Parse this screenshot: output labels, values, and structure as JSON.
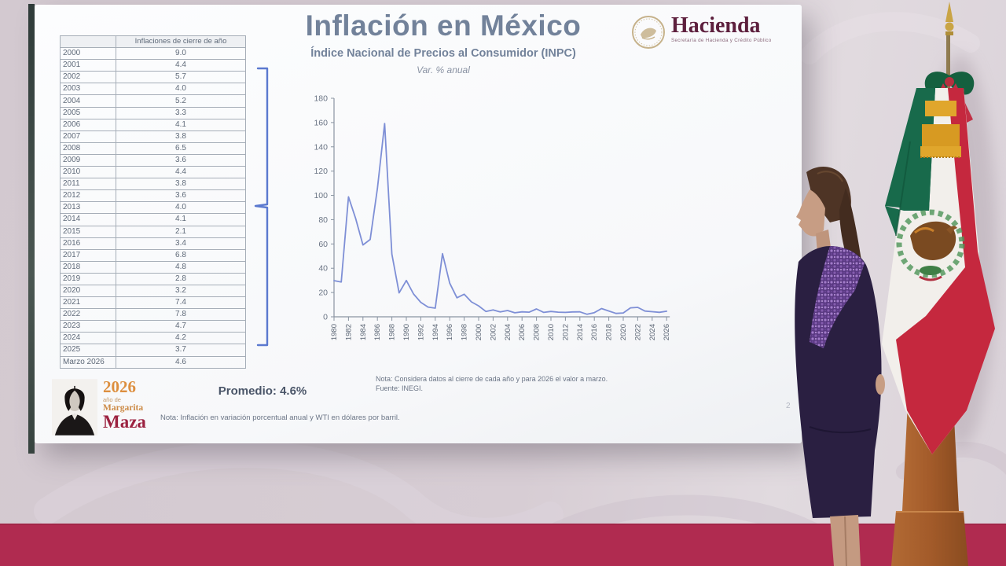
{
  "slide": {
    "title": "Inflación en México",
    "subtitle": "Índice Nacional de Precios al Consumidor (INPC)",
    "var_label": "Var. % anual",
    "promedio": "Promedio: 4.6%",
    "note_chart_line1": "Nota: Considera datos al cierre de cada año y para 2026 el valor a marzo.",
    "note_chart_line2": "Fuente: INEGI.",
    "note_bottom": "Nota: Inflación en variación porcentual anual y WTI en dólares por barril.",
    "page_number": "2"
  },
  "hacienda_logo": {
    "name": "Hacienda",
    "subtext": "Secretaría de Hacienda y Crédito Público"
  },
  "maza_logo": {
    "year": "2026",
    "line1": "año de",
    "line2": "Margarita",
    "line3": "Maza"
  },
  "table": {
    "header": "Inflaciones de cierre de año",
    "rows": [
      [
        "2000",
        "9.0"
      ],
      [
        "2001",
        "4.4"
      ],
      [
        "2002",
        "5.7"
      ],
      [
        "2003",
        "4.0"
      ],
      [
        "2004",
        "5.2"
      ],
      [
        "2005",
        "3.3"
      ],
      [
        "2006",
        "4.1"
      ],
      [
        "2007",
        "3.8"
      ],
      [
        "2008",
        "6.5"
      ],
      [
        "2009",
        "3.6"
      ],
      [
        "2010",
        "4.4"
      ],
      [
        "2011",
        "3.8"
      ],
      [
        "2012",
        "3.6"
      ],
      [
        "2013",
        "4.0"
      ],
      [
        "2014",
        "4.1"
      ],
      [
        "2015",
        "2.1"
      ],
      [
        "2016",
        "3.4"
      ],
      [
        "2017",
        "6.8"
      ],
      [
        "2018",
        "4.8"
      ],
      [
        "2019",
        "2.8"
      ],
      [
        "2020",
        "3.2"
      ],
      [
        "2021",
        "7.4"
      ],
      [
        "2022",
        "7.8"
      ],
      [
        "2023",
        "4.7"
      ],
      [
        "2024",
        "4.2"
      ],
      [
        "2025",
        "3.7"
      ],
      [
        "Marzo 2026",
        "4.6"
      ]
    ]
  },
  "chart_data": {
    "type": "line",
    "title": "Índice Nacional de Precios al Consumidor (INPC) — Var. % anual",
    "x": [
      1980,
      1981,
      1982,
      1983,
      1984,
      1985,
      1986,
      1987,
      1988,
      1989,
      1990,
      1991,
      1992,
      1993,
      1994,
      1995,
      1996,
      1997,
      1998,
      1999,
      2000,
      2001,
      2002,
      2003,
      2004,
      2005,
      2006,
      2007,
      2008,
      2009,
      2010,
      2011,
      2012,
      2013,
      2014,
      2015,
      2016,
      2017,
      2018,
      2019,
      2020,
      2021,
      2022,
      2023,
      2024,
      2025,
      2026
    ],
    "values": [
      29.8,
      28.7,
      98.8,
      80.8,
      59.2,
      63.7,
      105.7,
      159.2,
      51.7,
      19.7,
      29.9,
      18.8,
      11.9,
      8.0,
      7.1,
      52.0,
      27.7,
      15.7,
      18.6,
      12.3,
      9.0,
      4.4,
      5.7,
      4.0,
      5.2,
      3.3,
      4.1,
      3.8,
      6.5,
      3.6,
      4.4,
      3.8,
      3.6,
      4.0,
      4.1,
      2.1,
      3.4,
      6.8,
      4.8,
      2.8,
      3.2,
      7.4,
      7.8,
      4.7,
      4.2,
      3.7,
      4.6
    ],
    "ylim": [
      0,
      180
    ],
    "y_tick_interval": 20,
    "x_tick_interval": 2,
    "grid": false,
    "legend": "none",
    "line_color": "#7e8fd6"
  },
  "colors": {
    "title_gray_blue": "#72829a",
    "hacienda_maroon": "#5d1f3d",
    "baseboard_crimson": "#b02b50",
    "flag_green": "#186a4b",
    "flag_red": "#c5283e",
    "gold_fringe": "#e0a62c",
    "maza_orange": "#dd8f3f",
    "maza_red": "#9c2240",
    "chart_line": "#7e8fd6"
  }
}
